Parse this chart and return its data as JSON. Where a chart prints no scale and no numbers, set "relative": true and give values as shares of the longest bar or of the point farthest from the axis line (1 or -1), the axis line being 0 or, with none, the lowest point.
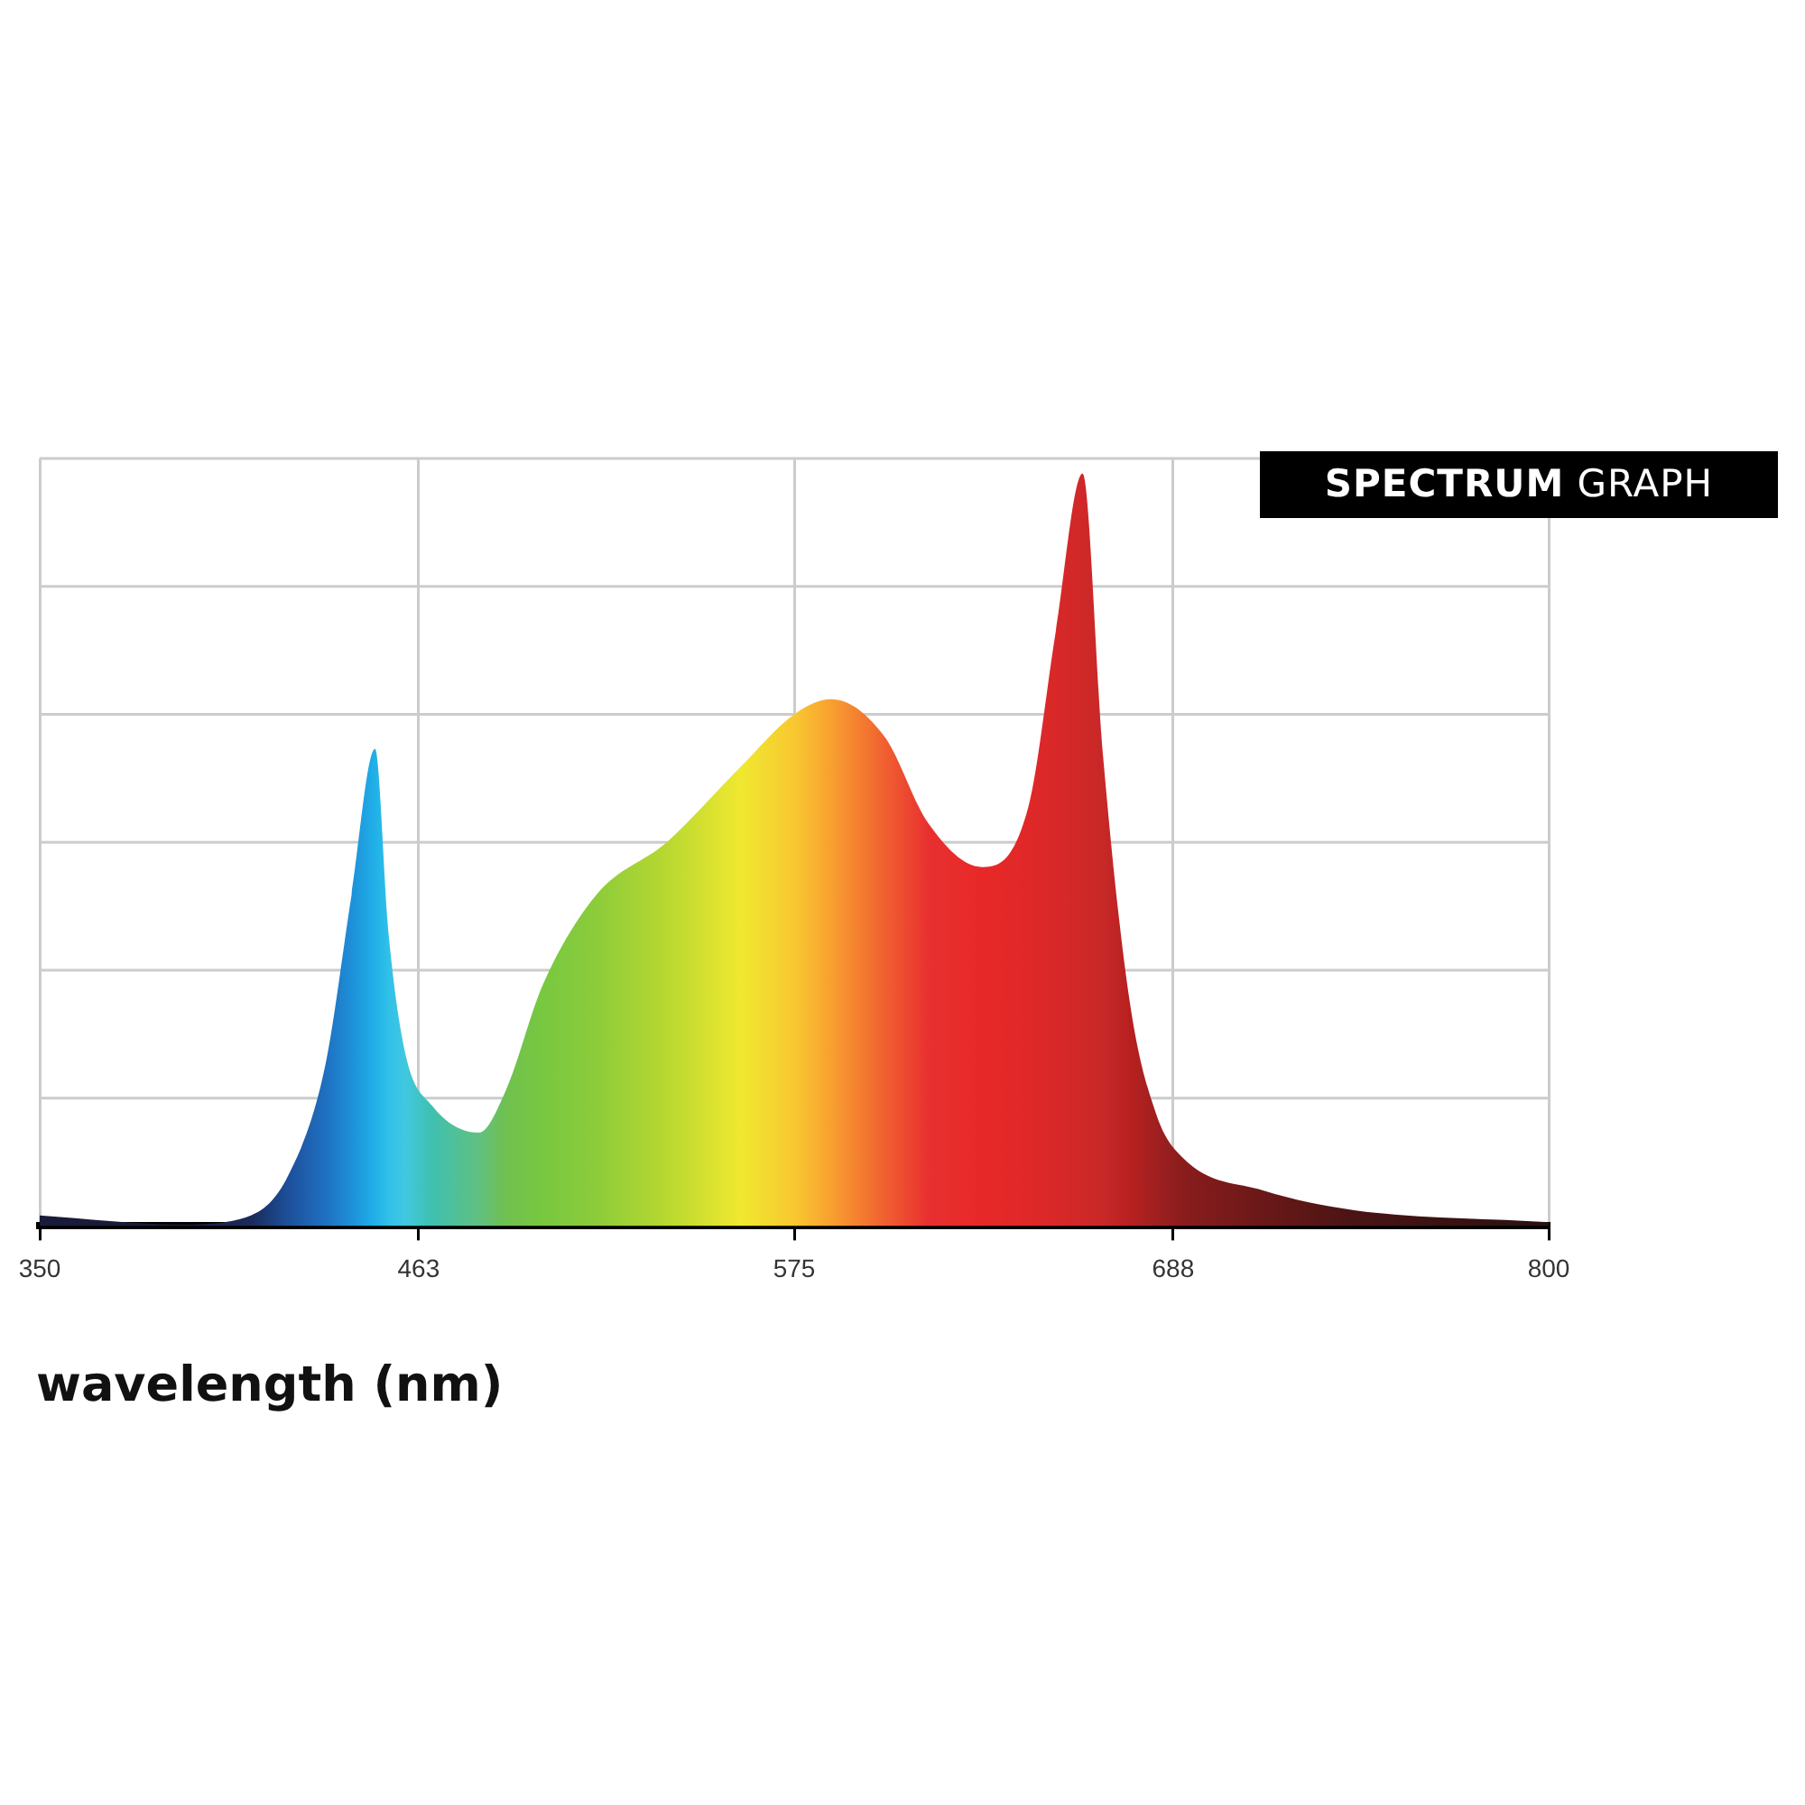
{
  "chart_data": {
    "type": "area",
    "title": "SPECTRUM GRAPH",
    "xlabel": "wavelength (nm)",
    "relative": true,
    "grid": true,
    "legend": false,
    "xlim": [
      350,
      800
    ],
    "xticks": [
      350,
      463,
      575,
      688,
      800
    ],
    "x": [
      350,
      392,
      413,
      424,
      435,
      443,
      450,
      454,
      459,
      467,
      481,
      489,
      500,
      516,
      537,
      559,
      575,
      586,
      602,
      615,
      631,
      645,
      653,
      661,
      667,
      675,
      683,
      691,
      715,
      742,
      800
    ],
    "values": [
      0.014,
      0.002,
      0.014,
      0.066,
      0.21,
      0.44,
      0.634,
      0.39,
      0.23,
      0.16,
      0.124,
      0.18,
      0.32,
      0.44,
      0.51,
      0.61,
      0.68,
      0.7,
      0.65,
      0.535,
      0.477,
      0.56,
      0.79,
      1,
      0.63,
      0.3,
      0.148,
      0.09,
      0.047,
      0.021,
      0.005
    ],
    "colors": [
      "#1a1a3a",
      "#1a1a3a",
      "#1a2a5a",
      "#1d4f9a",
      "#1f6fc0",
      "#1e90d8",
      "#20b0e8",
      "#30c0e8",
      "#40c8e0",
      "#40c0b0",
      "#60c080",
      "#70c050",
      "#78c840",
      "#8ccc3a",
      "#b8d830",
      "#f0e830",
      "#f8c830",
      "#f8a030",
      "#f06030",
      "#e83030",
      "#e82828",
      "#e02828",
      "#d82828",
      "#d02828",
      "#c82828",
      "#b82020",
      "#a02020",
      "#8a1c1c",
      "#6a1818",
      "#4a1414",
      "#2a1010"
    ]
  }
}
